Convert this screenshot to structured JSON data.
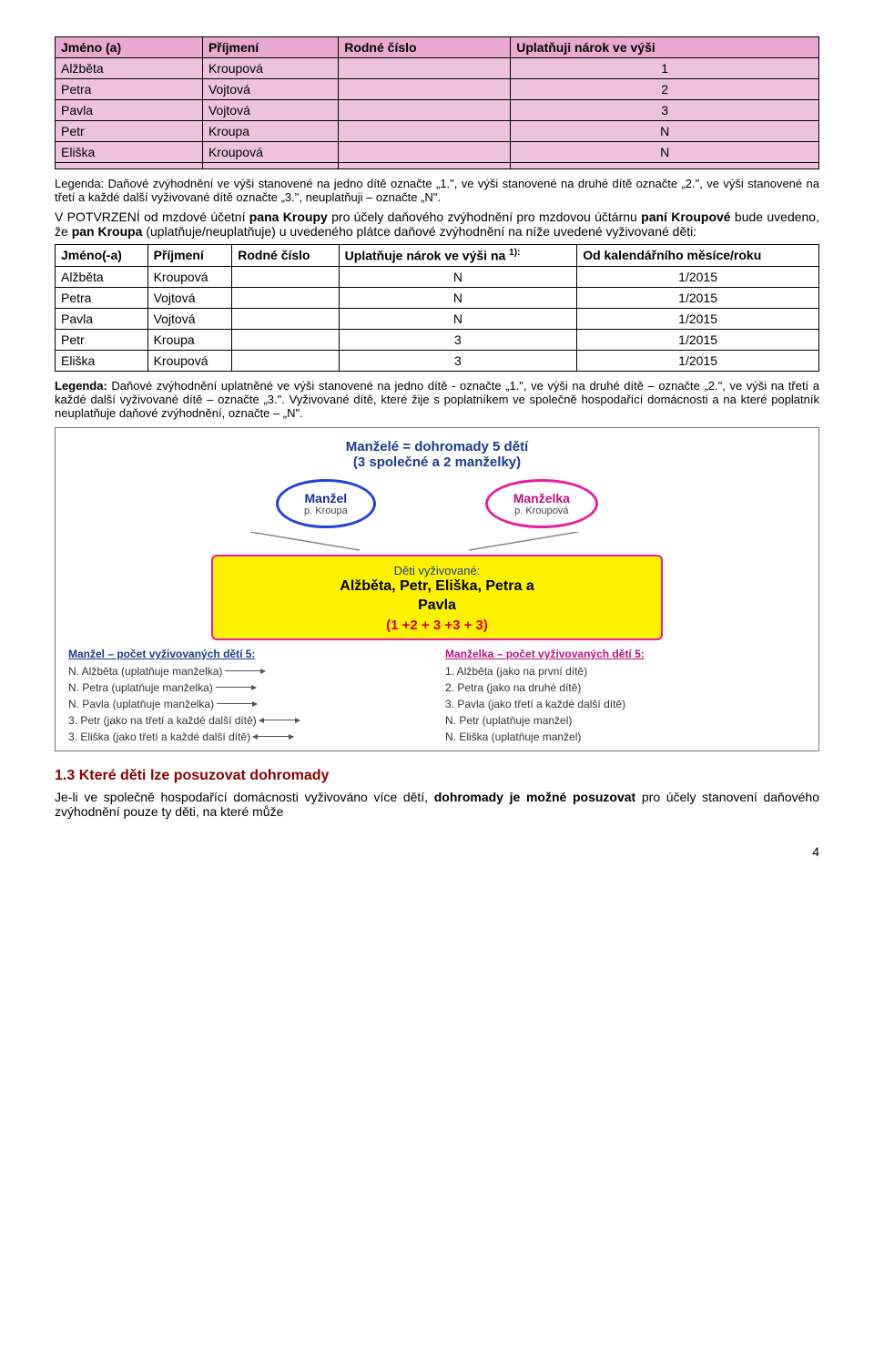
{
  "table1": {
    "headers": [
      "Jméno (a)",
      "Příjmení",
      "Rodné číslo",
      "Uplatňuji nárok ve výši"
    ],
    "rows": [
      [
        "Alžběta",
        "Kroupová",
        "",
        "1"
      ],
      [
        "Petra",
        "Vojtová",
        "",
        "2"
      ],
      [
        "Pavla",
        "Vojtová",
        "",
        "3"
      ],
      [
        "Petr",
        "Kroupa",
        "",
        "N"
      ],
      [
        "Eliška",
        "Kroupová",
        "",
        "N"
      ],
      [
        "",
        "",
        "",
        ""
      ]
    ]
  },
  "legend1": "Legenda: Daňové zvýhodnění ve výši stanovené na jedno dítě označte „1.\", ve výši stanovené na druhé dítě označte „2.\", ve výši stanovené na třetí a každé další vyživované dítě označte „3.\", neuplatňuji – označte „N\".",
  "para1_a": "V POTVRZENÍ od mzdové účetní ",
  "para1_b": "pana Kroupy",
  "para1_c": " pro účely daňového zvýhodnění pro mzdovou účtárnu ",
  "para1_d": "paní Kroupové",
  "para1_e": " bude uvedeno, že ",
  "para1_f": "pan Kroupa",
  "para1_g": " (uplatňuje/neuplatňuje) u uvedeného plátce daňové zvýhodnění na níže uvedené vyživované děti:",
  "table2": {
    "headers": [
      "Jméno(-a)",
      "Příjmení",
      "Rodné číslo",
      "Uplatňuje nárok ve výši na ",
      "Od kalendářního měsíce/roku"
    ],
    "sup": "1):",
    "rows": [
      [
        "Alžběta",
        "Kroupová",
        "",
        "N",
        "1/2015"
      ],
      [
        "Petra",
        "Vojtová",
        "",
        "N",
        "1/2015"
      ],
      [
        "Pavla",
        "Vojtová",
        "",
        "N",
        "1/2015"
      ],
      [
        "Petr",
        "Kroupa",
        "",
        "3",
        "1/2015"
      ],
      [
        "Eliška",
        "Kroupová",
        "",
        "3",
        "1/2015"
      ]
    ]
  },
  "legend2": "Legenda: Daňové zvýhodnění uplatněné ve výši stanovené na jedno dítě - označte „1.\", ve výši na druhé dítě – označte „2.\", ve výši na třetí a každé další vyživované dítě – označte „3.\". Vyživované dítě, které žije s poplatníkem ve společně hospodařící domácnosti a na které poplatník neuplatňuje daňové zvýhodnění, označte – „N\".",
  "diagram": {
    "title1": "Manželé = dohromady 5 dětí",
    "title2": "(3 společné a 2 manželky)",
    "husband": {
      "role": "Manžel",
      "name": "p. Kroupa"
    },
    "wife": {
      "role": "Manželka",
      "name": "p. Kroupová"
    },
    "yellow": {
      "label": "Děti vyživované:",
      "names1": "Alžběta, Petr, Eliška,  Petra a",
      "names2": "Pavla",
      "formula": "(1 +2 + 3 +3 + 3)"
    },
    "left_header": "Manžel – počet vyživovaných dětí 5:",
    "right_header": "Manželka – počet vyživovaných dětí 5:",
    "left": [
      "N. Alžběta (uplatňuje manželka)",
      "N. Petra (uplatňuje manželka)",
      "N. Pavla (uplatňuje manželka)",
      "3. Petr (jako na třetí a každé další dítě)",
      "3. Eliška (jako třetí a každé další dítě)"
    ],
    "right": [
      "1. Alžběta (jako na první dítě)",
      "2. Petra (jako na druhé dítě)",
      "3. Pavla (jako třetí a každé další dítě)",
      "N. Petr (uplatňuje manžel)",
      "N. Eliška (uplatňuje manžel)"
    ],
    "arrow_types": [
      "r",
      "r",
      "r",
      "bi",
      "bi"
    ]
  },
  "section": {
    "num": "1.3",
    "title": "Které děti lze posuzovat dohromady",
    "p_a": "Je-li ve společně hospodařící domácnosti vyživováno více dětí, ",
    "p_b": "dohromady je možné posuzovat",
    "p_c": " pro účely stanovení daňového zvýhodnění pouze ty děti, na které může"
  },
  "page_number": "4"
}
